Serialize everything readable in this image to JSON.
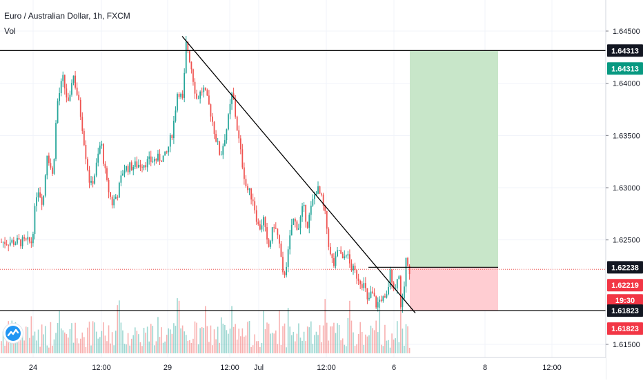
{
  "header": {
    "symbol_title": "Euro / Australian Dollar, 1h, FXCM",
    "volume_label": "Vol"
  },
  "colors": {
    "up": "#26a69a",
    "down": "#ef5350",
    "profit_zone": "#c8e6c9",
    "loss_zone": "#ffcdd2",
    "grid": "#f0f3fa",
    "line": "#000000"
  },
  "chart_data": {
    "type": "candlestick",
    "y_axis": {
      "ticks": [
        "1.64500",
        "1.64000",
        "1.63500",
        "1.63000",
        "1.62500",
        "1.61500"
      ],
      "range": [
        1.6138,
        1.6468
      ]
    },
    "x_axis": {
      "ticks": [
        "24",
        "12:00",
        "29",
        "12:00",
        "Jul",
        "12:00",
        "6",
        "8",
        "12:00"
      ]
    },
    "price_labels": [
      {
        "id": "resistance",
        "text": "1.64313",
        "value": 1.64313,
        "style": "dark"
      },
      {
        "id": "target",
        "text": "1.64313",
        "value": 1.64313,
        "style": "green"
      },
      {
        "id": "entry",
        "text": "1.62238",
        "value": 1.62238,
        "style": "dark"
      },
      {
        "id": "last-price",
        "text": "1.62219",
        "value": 1.62219,
        "style": "red"
      },
      {
        "id": "countdown",
        "text": "19:30",
        "value": 1.62219,
        "style": "red"
      },
      {
        "id": "support",
        "text": "1.61823",
        "value": 1.61823,
        "style": "dark"
      },
      {
        "id": "stop",
        "text": "1.61823",
        "value": 1.61823,
        "style": "red"
      }
    ],
    "horizontal_levels": [
      1.64313,
      1.61823
    ],
    "trendline": {
      "from": [
        "29",
        1.6445
      ],
      "to": [
        "6",
        1.618
      ]
    },
    "position": {
      "entry": 1.62238,
      "target": 1.64313,
      "stop": 1.61823
    },
    "price_path": [
      {
        "t": "23 23:00",
        "p": 1.6248
      },
      {
        "t": "24 03:00",
        "p": 1.6302
      },
      {
        "t": "24 07:00",
        "p": 1.6285
      },
      {
        "t": "24 10:00",
        "p": 1.6335
      },
      {
        "t": "24 14:00",
        "p": 1.631
      },
      {
        "t": "24 17:00",
        "p": 1.638
      },
      {
        "t": "24 21:00",
        "p": 1.6405
      },
      {
        "t": "25 02:00",
        "p": 1.6375
      },
      {
        "t": "25 05:00",
        "p": 1.6412
      },
      {
        "t": "25 09:00",
        "p": 1.639
      },
      {
        "t": "25 13:00",
        "p": 1.6365
      },
      {
        "t": "25 17:00",
        "p": 1.633
      },
      {
        "t": "25 21:00",
        "p": 1.63
      },
      {
        "t": "26 01:00",
        "p": 1.6315
      },
      {
        "t": "26 05:00",
        "p": 1.6345
      },
      {
        "t": "26 09:00",
        "p": 1.6305
      },
      {
        "t": "26 13:00",
        "p": 1.6285
      },
      {
        "t": "26 17:00",
        "p": 1.6295
      },
      {
        "t": "26 21:00",
        "p": 1.6318
      },
      {
        "t": "28 23:00",
        "p": 1.633
      },
      {
        "t": "29 03:00",
        "p": 1.6355
      },
      {
        "t": "29 06:00",
        "p": 1.6395
      },
      {
        "t": "29 09:00",
        "p": 1.6382
      },
      {
        "t": "29 11:00",
        "p": 1.644
      },
      {
        "t": "29 14:00",
        "p": 1.6415
      },
      {
        "t": "29 17:00",
        "p": 1.6385
      },
      {
        "t": "29 21:00",
        "p": 1.6395
      },
      {
        "t": "30 01:00",
        "p": 1.6375
      },
      {
        "t": "30 04:00",
        "p": 1.635
      },
      {
        "t": "30 07:00",
        "p": 1.633
      },
      {
        "t": "30 11:00",
        "p": 1.636
      },
      {
        "t": "30 14:00",
        "p": 1.6392
      },
      {
        "t": "30 16:00",
        "p": 1.6365
      },
      {
        "t": "30 19:00",
        "p": 1.633
      },
      {
        "t": "30 22:00",
        "p": 1.63
      },
      {
        "t": "01 02:00",
        "p": 1.629
      },
      {
        "t": "01 06:00",
        "p": 1.626
      },
      {
        "t": "01 09:00",
        "p": 1.627
      },
      {
        "t": "01 12:00",
        "p": 1.624
      },
      {
        "t": "01 16:00",
        "p": 1.6265
      },
      {
        "t": "01 19:00",
        "p": 1.625
      },
      {
        "t": "01 22:00",
        "p": 1.6212
      },
      {
        "t": "02 01:00",
        "p": 1.6235
      },
      {
        "t": "02 04:00",
        "p": 1.627
      },
      {
        "t": "02 08:00",
        "p": 1.6262
      },
      {
        "t": "02 11:00",
        "p": 1.6282
      },
      {
        "t": "02 14:00",
        "p": 1.6265
      },
      {
        "t": "02 17:00",
        "p": 1.6285
      },
      {
        "t": "02 20:00",
        "p": 1.63
      },
      {
        "t": "02 23:00",
        "p": 1.629
      },
      {
        "t": "03 02:00",
        "p": 1.627
      },
      {
        "t": "03 05:00",
        "p": 1.6235
      },
      {
        "t": "03 08:00",
        "p": 1.6225
      },
      {
        "t": "03 11:00",
        "p": 1.6242
      },
      {
        "t": "03 14:00",
        "p": 1.6228
      },
      {
        "t": "03 16:00",
        "p": 1.624
      },
      {
        "t": "03 19:00",
        "p": 1.6225
      },
      {
        "t": "05 22:00",
        "p": 1.6205
      },
      {
        "t": "06 01:00",
        "p": 1.619
      },
      {
        "t": "06 04:00",
        "p": 1.62
      },
      {
        "t": "06 07:00",
        "p": 1.6187
      },
      {
        "t": "06 10:00",
        "p": 1.6195
      },
      {
        "t": "06 13:00",
        "p": 1.619
      },
      {
        "t": "06 16:00",
        "p": 1.622
      },
      {
        "t": "06 19:00",
        "p": 1.62
      },
      {
        "t": "06 21:00",
        "p": 1.6225
      },
      {
        "t": "06 23:00",
        "p": 1.618
      },
      {
        "t": "07 02:00",
        "p": 1.62
      },
      {
        "t": "07 04:00",
        "p": 1.6212
      },
      {
        "t": "07 06:00",
        "p": 1.624
      },
      {
        "t": "07 07:00",
        "p": 1.6228
      },
      {
        "t": "07 08:00",
        "p": 1.6222
      }
    ]
  }
}
